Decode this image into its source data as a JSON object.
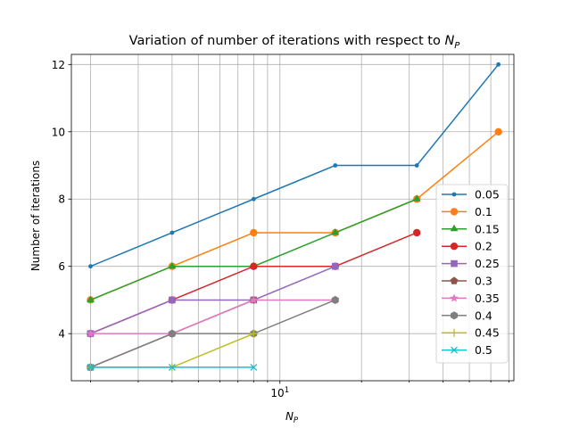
{
  "chart_data": {
    "type": "line",
    "title_main": "Variation of number of iterations with respect to ",
    "title_var": "N",
    "title_sub": "P",
    "xlabel_var": "N",
    "xlabel_sub": "P",
    "ylabel": "Number of iterations",
    "x_scale": "log",
    "xlim": [
      1.7,
      73
    ],
    "ylim": [
      2.6,
      12.3
    ],
    "grid": true,
    "grid_minor_x": true,
    "legend_position": "center-right",
    "x_tick_labels": [
      {
        "value": 10,
        "label_base": "10",
        "label_exp": "1"
      }
    ],
    "y_ticks": [
      4,
      6,
      8,
      10,
      12
    ],
    "series": [
      {
        "name": "0.05",
        "color": "#1f77b4",
        "marker": "point",
        "x": [
          2,
          4,
          8,
          16,
          32,
          64
        ],
        "y": [
          6,
          7,
          8,
          9,
          9,
          12
        ]
      },
      {
        "name": "0.1",
        "color": "#ff7f0e",
        "marker": "circle",
        "x": [
          2,
          4,
          8,
          16,
          32,
          64
        ],
        "y": [
          5,
          6,
          7,
          7,
          8,
          10
        ]
      },
      {
        "name": "0.15",
        "color": "#2ca02c",
        "marker": "triangle",
        "x": [
          2,
          4,
          8,
          16,
          32
        ],
        "y": [
          5,
          6,
          6,
          7,
          8
        ]
      },
      {
        "name": "0.2",
        "color": "#d62728",
        "marker": "circle",
        "x": [
          2,
          4,
          8,
          16,
          32
        ],
        "y": [
          4,
          5,
          6,
          6,
          7
        ]
      },
      {
        "name": "0.25",
        "color": "#9467bd",
        "marker": "square",
        "x": [
          2,
          4,
          8,
          16
        ],
        "y": [
          4,
          5,
          5,
          6
        ]
      },
      {
        "name": "0.3",
        "color": "#8c564b",
        "marker": "pentagon",
        "x": [
          2,
          4,
          8
        ],
        "y": [
          3,
          4,
          5
        ]
      },
      {
        "name": "0.35",
        "color": "#e377c2",
        "marker": "star",
        "x": [
          2,
          4,
          8,
          16
        ],
        "y": [
          4,
          4,
          5,
          5
        ]
      },
      {
        "name": "0.4",
        "color": "#7f7f7f",
        "marker": "hexagon",
        "x": [
          2,
          4,
          8,
          16
        ],
        "y": [
          3,
          4,
          4,
          5
        ]
      },
      {
        "name": "0.45",
        "color": "#bcbd22",
        "marker": "plus",
        "x": [
          2,
          4,
          8
        ],
        "y": [
          3,
          3,
          4
        ]
      },
      {
        "name": "0.5",
        "color": "#17becf",
        "marker": "x",
        "x": [
          2,
          4,
          8
        ],
        "y": [
          3,
          3,
          3
        ]
      }
    ]
  }
}
